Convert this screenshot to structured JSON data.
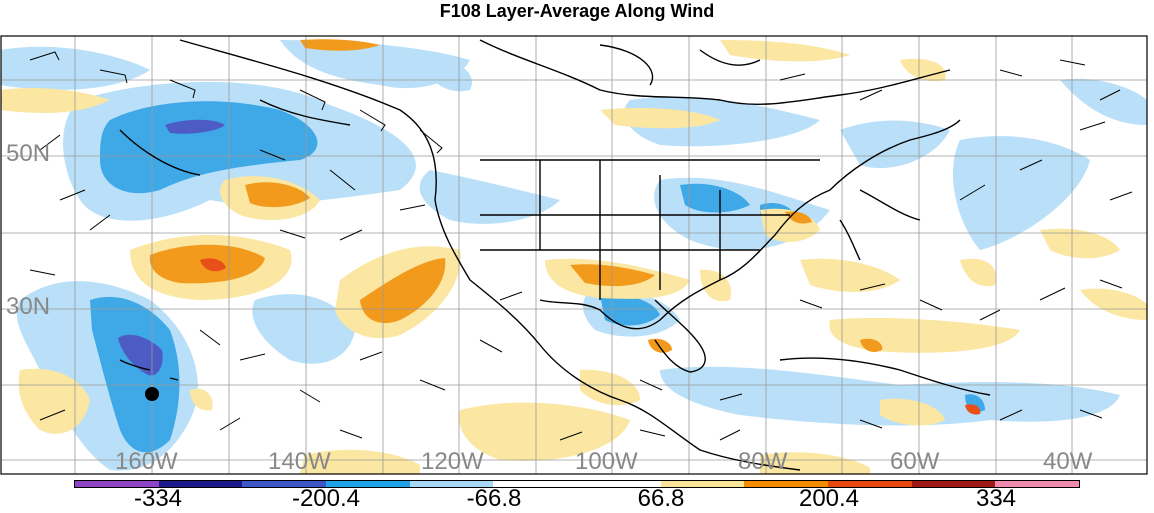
{
  "title": "F108 Layer-Average Along Wind",
  "lat_labels": [
    "50N",
    "30N"
  ],
  "lon_labels": [
    "160W",
    "140W",
    "120W",
    "100W",
    "80W",
    "60W",
    "40W"
  ],
  "colorbar": {
    "colors": [
      "#8e44c6",
      "#1a1a8c",
      "#3c56c8",
      "#1fa2e6",
      "#a8d8f5",
      "#ffffff",
      "#ffffff",
      "#fbe39a",
      "#f28c00",
      "#e8460f",
      "#a01818",
      "#f08bb0"
    ],
    "labels": [
      "-334",
      "-200.4",
      "-66.8",
      "66.8",
      "200.4",
      "334"
    ]
  },
  "palette": {
    "neg_light": "#b9e0f8",
    "neg_mid": "#3fa9e8",
    "neg_dark": "#4d5bc4",
    "pos_light": "#fbe6a2",
    "pos_mid": "#f29a1c",
    "pos_dark": "#e8501a",
    "coast": "#000000",
    "grid": "#9a9a9a"
  },
  "marker": {
    "label": "station-dot"
  }
}
